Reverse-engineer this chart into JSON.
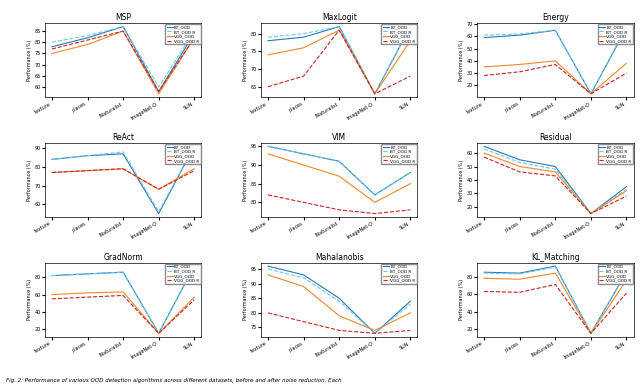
{
  "x_labels": [
    "texture",
    "places",
    "iNaturalist",
    "ImageNet-O",
    "SUN"
  ],
  "subplot_titles": [
    "MSP",
    "MaxLogit",
    "Energy",
    "ReAct",
    "VIM",
    "Residual",
    "GradNorm",
    "Mahalanobis",
    "KL_Matching"
  ],
  "legend_labels": [
    "BT_OOD",
    "BT_OOD R",
    "VGG_OOD",
    "VGG_OOD R"
  ],
  "line_styles": [
    "-",
    "--",
    "-",
    "--"
  ],
  "line_colors": [
    "#2878b5",
    "#6dc8ec",
    "#f08830",
    "#c82423"
  ],
  "series": {
    "MSP": {
      "BT_OOD": [
        78,
        82,
        87,
        58,
        84
      ],
      "BT_OOD R": [
        80,
        83,
        87,
        60,
        85
      ],
      "VGG_OOD": [
        75,
        79,
        85,
        57,
        82
      ],
      "VGG_OOD R": [
        77,
        81,
        85,
        58,
        82
      ]
    },
    "MaxLogit": {
      "BT_OOD": [
        78,
        79,
        82,
        63,
        82
      ],
      "BT_OOD R": [
        79,
        80,
        82,
        63,
        82
      ],
      "VGG_OOD": [
        74,
        76,
        81,
        63,
        78
      ],
      "VGG_OOD R": [
        65,
        68,
        81,
        63,
        68
      ]
    },
    "Energy": {
      "BT_OOD": [
        59,
        61,
        65,
        13,
        67
      ],
      "BT_OOD R": [
        61,
        62,
        65,
        13,
        68
      ],
      "VGG_OOD": [
        35,
        37,
        40,
        13,
        38
      ],
      "VGG_OOD R": [
        28,
        31,
        37,
        13,
        30
      ]
    },
    "ReAct": {
      "BT_OOD": [
        84,
        86,
        87,
        55,
        91
      ],
      "BT_OOD R": [
        84,
        86,
        88,
        56,
        91
      ],
      "VGG_OOD": [
        77,
        78,
        79,
        68,
        79
      ],
      "VGG_OOD R": [
        77,
        78,
        79,
        68,
        78
      ]
    },
    "VIM": {
      "BT_OOD": [
        95,
        93,
        91,
        82,
        88
      ],
      "BT_OOD R": [
        95,
        93,
        91,
        82,
        88
      ],
      "VGG_OOD": [
        93,
        90,
        87,
        80,
        85
      ],
      "VGG_OOD R": [
        82,
        80,
        78,
        77,
        78
      ]
    },
    "Residual": {
      "BT_OOD": [
        65,
        55,
        50,
        15,
        35
      ],
      "BT_OOD R": [
        63,
        53,
        48,
        15,
        33
      ],
      "VGG_OOD": [
        60,
        50,
        46,
        15,
        32
      ],
      "VGG_OOD R": [
        57,
        46,
        43,
        15,
        28
      ]
    },
    "GradNorm": {
      "BT_OOD": [
        82,
        84,
        86,
        15,
        93
      ],
      "BT_OOD R": [
        82,
        84,
        86,
        15,
        93
      ],
      "VGG_OOD": [
        60,
        62,
        63,
        15,
        57
      ],
      "VGG_OOD R": [
        55,
        57,
        59,
        15,
        54
      ]
    },
    "Mahalanobis": {
      "BT_OOD": [
        96,
        93,
        85,
        73,
        84
      ],
      "BT_OOD R": [
        95,
        92,
        84,
        73,
        83
      ],
      "VGG_OOD": [
        93,
        89,
        79,
        74,
        80
      ],
      "VGG_OOD R": [
        80,
        77,
        74,
        73,
        74
      ]
    },
    "KL_Matching": {
      "BT_OOD": [
        85,
        84,
        92,
        15,
        85
      ],
      "BT_OOD R": [
        84,
        83,
        91,
        15,
        85
      ],
      "VGG_OOD": [
        78,
        77,
        84,
        15,
        76
      ],
      "VGG_OOD R": [
        63,
        62,
        71,
        15,
        61
      ]
    }
  },
  "ylabels": {
    "MSP": "performance (%)",
    "MaxLogit": "Performance",
    "Energy": "Performance (%)",
    "ReAct": "performance (%)",
    "VIM": "Performance (%)",
    "Residual": "Performance (%)",
    "GradNorm": "performance (%)",
    "Mahalanobis": "Performance (%)",
    "KL_Matching": "Performance (%)"
  },
  "caption": "Fig. 2: Performance of various OOD detection algorithms across different datasets, before and after noise reduction. Each",
  "background_color": "#ffffff"
}
